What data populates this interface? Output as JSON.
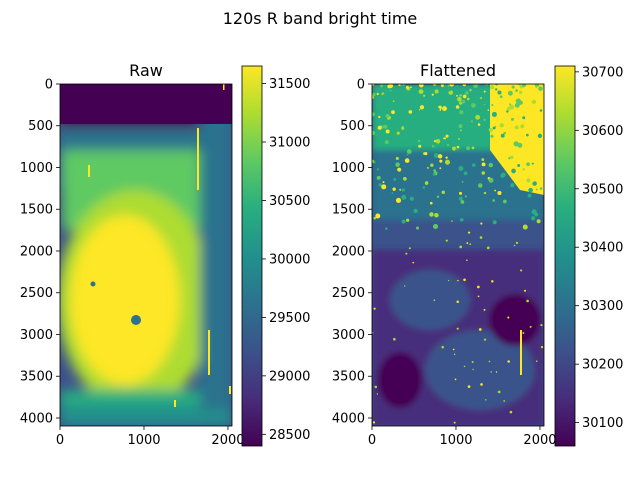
{
  "figure": {
    "title": "120s R band bright time"
  },
  "chart_data": [
    {
      "type": "heatmap",
      "title": "Raw",
      "xlim": [
        0,
        2048
      ],
      "ylim": [
        4096,
        0
      ],
      "x_ticks": [
        0,
        1000,
        2000
      ],
      "y_ticks": [
        0,
        500,
        1000,
        1500,
        2000,
        2500,
        3000,
        3500,
        4000
      ],
      "colormap": "viridis",
      "colorbar": {
        "min": 28400,
        "max": 31650,
        "ticks": [
          28500,
          29000,
          29500,
          30000,
          30500,
          31000,
          31500
        ]
      },
      "features": [
        {
          "kind": "low-background",
          "region": "top strip",
          "y_range": [
            0,
            550
          ],
          "value": 28550
        },
        {
          "kind": "bright-core",
          "center": [
            900,
            2500
          ],
          "value": 31600
        },
        {
          "kind": "bright-column",
          "x": 1620,
          "y_range": [
            500,
            1250
          ]
        },
        {
          "kind": "bright-column",
          "x": 1770,
          "y_range": [
            2950,
            3450
          ]
        },
        {
          "kind": "dark-spot",
          "center": [
            900,
            2820
          ]
        }
      ]
    },
    {
      "type": "heatmap",
      "title": "Flattened",
      "xlim": [
        0,
        2048
      ],
      "ylim": [
        4096,
        0
      ],
      "x_ticks": [
        0,
        1000,
        2000
      ],
      "y_ticks": [
        0,
        500,
        1000,
        1500,
        2000,
        2500,
        3000,
        3500,
        4000
      ],
      "colormap": "viridis",
      "colorbar": {
        "min": 30060,
        "max": 30710,
        "ticks": [
          30100,
          30200,
          30300,
          30400,
          30500,
          30600,
          30700
        ]
      },
      "features": [
        {
          "kind": "saturated-region",
          "region": "top-right",
          "value": 30700
        },
        {
          "kind": "speckled-upper-half",
          "y_range": [
            0,
            1700
          ],
          "value": 30550
        },
        {
          "kind": "dark-lower-half",
          "y_range": [
            1800,
            4096
          ],
          "value": 30150
        },
        {
          "kind": "bright-column",
          "x": 1770,
          "y_range": [
            2950,
            3450
          ]
        }
      ]
    }
  ]
}
